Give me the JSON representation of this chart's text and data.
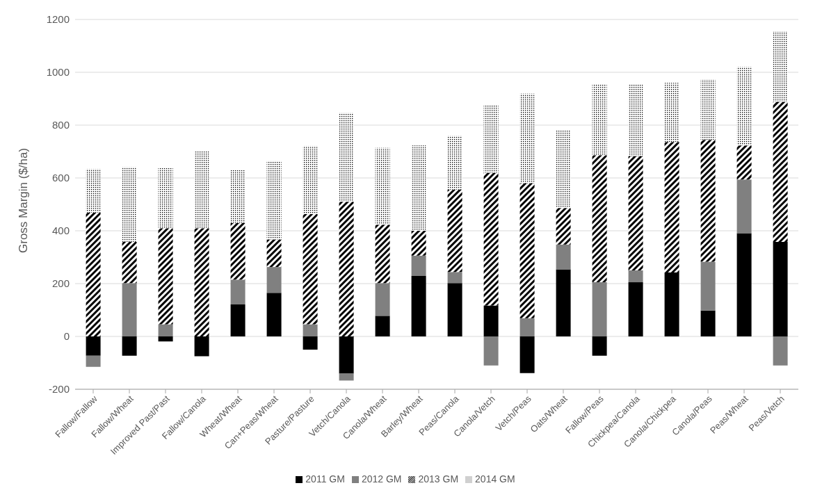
{
  "chart_data": {
    "type": "bar",
    "stacked": true,
    "ylabel": "Gross Margin ($/ha)",
    "categories": [
      "Fallow/Fallow",
      "Fallow/Wheat",
      "Improved Past/Past",
      "Fallow/Canola",
      "Wheat/Wheat",
      "Can+Peas/Wheat",
      "Pasture/Pasture",
      "Vetch/Canola",
      "Canola/Wheat",
      "Barley/Wheat",
      "Peas/Canola",
      "Canola/Vetch",
      "Vetch/Peas",
      "Oats/Wheat",
      "Fallow/Peas",
      "Chickpea/Canola",
      "Canola/Chickpea",
      "Canola/Peas",
      "Peas/Wheat",
      "Peas/Vetch"
    ],
    "series": [
      {
        "name": "2011 GM",
        "color": "#000000",
        "values": [
          -73,
          -73,
          -19,
          -75,
          121,
          165,
          -50,
          -141,
          78,
          229,
          202,
          117,
          -139,
          254,
          -73,
          205,
          242,
          98,
          391,
          358
        ]
      },
      {
        "name": "2012 GM",
        "color": "#808080",
        "values": [
          -42,
          202,
          46,
          0,
          94,
          98,
          46,
          -26,
          124,
          77,
          42,
          -110,
          69,
          94,
          205,
          45,
          0,
          185,
          203,
          -110
        ]
      },
      {
        "name": "2013 GM",
        "color": "#000000",
        "values": [
          469,
          156,
          364,
          410,
          214,
          104,
          417,
          510,
          221,
          94,
          312,
          502,
          511,
          138,
          481,
          432,
          494,
          461,
          129,
          530
        ]
      },
      {
        "name": "2014 GM",
        "color": "#000000",
        "values": [
          165,
          283,
          228,
          290,
          200,
          297,
          258,
          336,
          291,
          323,
          203,
          256,
          339,
          294,
          269,
          273,
          224,
          229,
          298,
          267
        ]
      }
    ],
    "ylim": [
      -200,
      1200
    ],
    "yticks": [
      -200,
      0,
      200,
      400,
      600,
      800,
      1000,
      1200
    ],
    "grid": "y",
    "legend": "bottom"
  }
}
